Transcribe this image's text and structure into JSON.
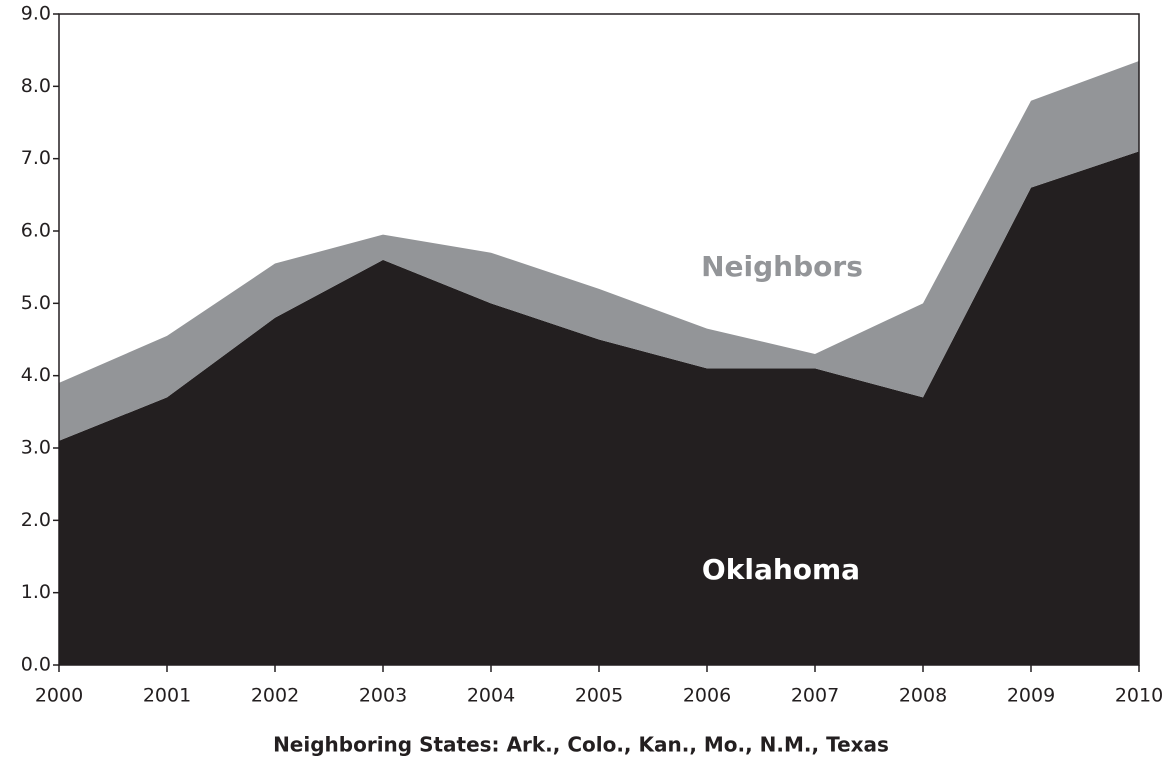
{
  "chart_data": {
    "type": "stacked-area",
    "xlabel": "Neighboring States: Ark., Colo., Kan., Mo., N.M., Texas",
    "categories": [
      "2000",
      "2001",
      "2002",
      "2003",
      "2004",
      "2005",
      "2006",
      "2007",
      "2008",
      "2009",
      "2010"
    ],
    "series": [
      {
        "name": "Oklahoma",
        "color": "#231f20",
        "values": [
          3.1,
          3.7,
          4.8,
          5.6,
          5.0,
          4.5,
          4.1,
          4.1,
          3.7,
          6.6,
          7.1
        ]
      },
      {
        "name": "Neighbors",
        "color": "#939598",
        "values": [
          0.8,
          0.85,
          0.75,
          0.35,
          0.7,
          0.7,
          0.55,
          0.2,
          1.3,
          1.2,
          1.25
        ]
      }
    ],
    "ylim": [
      0,
      9
    ],
    "yticks": [
      {
        "value": 0,
        "label": "0.0"
      },
      {
        "value": 1,
        "label": "1.0"
      },
      {
        "value": 2,
        "label": "2.0"
      },
      {
        "value": 3,
        "label": "3.0"
      },
      {
        "value": 4,
        "label": "4.0"
      },
      {
        "value": 5,
        "label": "5.0"
      },
      {
        "value": 6,
        "label": "6.0"
      },
      {
        "value": 7,
        "label": "7.0"
      },
      {
        "value": 8,
        "label": "8.0"
      },
      {
        "value": 9,
        "label": "9.0"
      }
    ],
    "grid": false
  }
}
